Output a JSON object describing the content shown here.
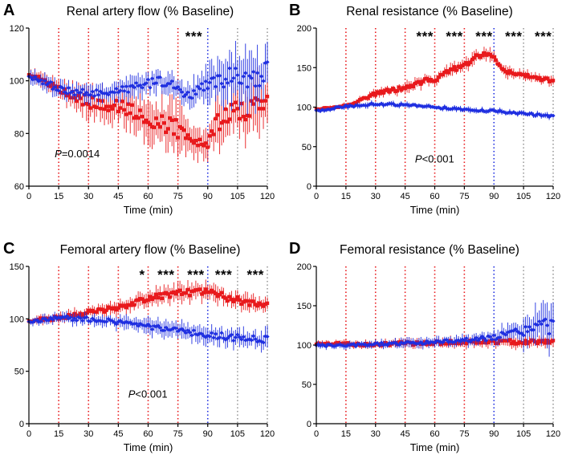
{
  "colors": {
    "red": "#e8191c",
    "blue": "#1f2fe0",
    "grey": "#9a9a9a",
    "axis": "#000000"
  },
  "chart_data": [
    {
      "type": "scatter",
      "panel_letter": "A",
      "title": "Renal artery flow (% Baseline)",
      "xlabel": "Time (min)",
      "ylabel": "",
      "xlim": [
        0,
        120
      ],
      "ylim": [
        60,
        120
      ],
      "xticks": [
        0,
        15,
        30,
        45,
        60,
        75,
        90,
        105,
        120
      ],
      "yticks": [
        60,
        80,
        100,
        120
      ],
      "vlines": [
        {
          "x": 15,
          "color": "red"
        },
        {
          "x": 30,
          "color": "red"
        },
        {
          "x": 45,
          "color": "red"
        },
        {
          "x": 60,
          "color": "red"
        },
        {
          "x": 75,
          "color": "red"
        },
        {
          "x": 90,
          "color": "blue"
        },
        {
          "x": 105,
          "color": "grey"
        },
        {
          "x": 120,
          "color": "grey"
        }
      ],
      "significance": [
        {
          "label": "***",
          "x": 83
        }
      ],
      "p_prefix": "P",
      "p_rest": "=0.0014",
      "p_pos": {
        "x": 13,
        "y": 71
      },
      "series": [
        {
          "color": "red",
          "x": [
            0,
            15,
            30,
            45,
            55,
            60,
            70,
            75,
            80,
            85,
            90,
            95,
            100,
            105,
            110,
            115,
            120
          ],
          "y": [
            103,
            97,
            92,
            90,
            88,
            86,
            83,
            82,
            78,
            76,
            76,
            84,
            88,
            89,
            88,
            90,
            93
          ],
          "err": [
            2,
            3,
            5,
            6,
            6,
            7,
            7,
            8,
            5,
            5,
            5,
            8,
            8,
            9,
            9,
            9,
            8
          ]
        },
        {
          "color": "blue",
          "x": [
            0,
            15,
            30,
            45,
            60,
            70,
            75,
            80,
            85,
            90,
            95,
            100,
            105,
            110,
            115,
            120
          ],
          "y": [
            102,
            97,
            95,
            96,
            99,
            100,
            97,
            95,
            96,
            98,
            100,
            101,
            102,
            101,
            100,
            104
          ],
          "err": [
            2,
            3,
            3,
            3,
            4,
            4,
            4,
            4,
            5,
            6,
            7,
            8,
            8,
            8,
            8,
            8
          ]
        }
      ]
    },
    {
      "type": "scatter",
      "panel_letter": "B",
      "title": "Renal resistance (% Baseline)",
      "xlabel": "Time (min)",
      "ylabel": "",
      "xlim": [
        0,
        120
      ],
      "ylim": [
        0,
        200
      ],
      "xticks": [
        0,
        15,
        30,
        45,
        60,
        75,
        90,
        105,
        120
      ],
      "yticks": [
        0,
        50,
        100,
        150,
        200
      ],
      "vlines": [
        {
          "x": 15,
          "color": "red"
        },
        {
          "x": 30,
          "color": "red"
        },
        {
          "x": 45,
          "color": "red"
        },
        {
          "x": 60,
          "color": "red"
        },
        {
          "x": 75,
          "color": "red"
        },
        {
          "x": 90,
          "color": "blue"
        },
        {
          "x": 105,
          "color": "grey"
        },
        {
          "x": 120,
          "color": "grey"
        }
      ],
      "significance": [
        {
          "label": "***",
          "x": 55
        },
        {
          "label": "***",
          "x": 70
        },
        {
          "label": "***",
          "x": 85
        },
        {
          "label": "***",
          "x": 100
        },
        {
          "label": "***",
          "x": 115
        }
      ],
      "p_prefix": "P",
      "p_rest": "<0.001",
      "p_pos": {
        "x": 50,
        "y": 30
      },
      "series": [
        {
          "color": "red",
          "x": [
            0,
            15,
            25,
            30,
            45,
            55,
            58,
            60,
            65,
            75,
            80,
            85,
            90,
            95,
            100,
            105,
            110,
            115,
            120
          ],
          "y": [
            97,
            102,
            112,
            117,
            125,
            133,
            137,
            132,
            145,
            152,
            163,
            168,
            162,
            147,
            142,
            140,
            138,
            135,
            133
          ],
          "err": [
            2,
            3,
            4,
            5,
            6,
            6,
            6,
            6,
            6,
            6,
            7,
            7,
            7,
            6,
            6,
            5,
            5,
            5,
            5
          ]
        },
        {
          "color": "blue",
          "x": [
            0,
            15,
            30,
            45,
            60,
            75,
            90,
            105,
            120
          ],
          "y": [
            95,
            101,
            104,
            103,
            100,
            97,
            95,
            92,
            88
          ],
          "err": [
            2,
            3,
            3,
            3,
            3,
            3,
            3,
            3,
            3
          ]
        }
      ]
    },
    {
      "type": "scatter",
      "panel_letter": "C",
      "title": "Femoral artery flow (% Baseline)",
      "xlabel": "Time (min)",
      "ylabel": "",
      "xlim": [
        0,
        120
      ],
      "ylim": [
        0,
        150
      ],
      "xticks": [
        0,
        15,
        30,
        45,
        60,
        75,
        90,
        105,
        120
      ],
      "yticks": [
        0,
        50,
        100,
        150
      ],
      "vlines": [
        {
          "x": 15,
          "color": "red"
        },
        {
          "x": 30,
          "color": "red"
        },
        {
          "x": 45,
          "color": "red"
        },
        {
          "x": 60,
          "color": "red"
        },
        {
          "x": 75,
          "color": "red"
        },
        {
          "x": 90,
          "color": "blue"
        },
        {
          "x": 105,
          "color": "grey"
        },
        {
          "x": 120,
          "color": "grey"
        }
      ],
      "significance": [
        {
          "label": "*",
          "x": 57
        },
        {
          "label": "***",
          "x": 69
        },
        {
          "label": "***",
          "x": 84
        },
        {
          "label": "***",
          "x": 98
        },
        {
          "label": "***",
          "x": 114
        }
      ],
      "p_prefix": "P",
      "p_rest": "<0.001",
      "p_pos": {
        "x": 50,
        "y": 25
      },
      "series": [
        {
          "color": "red",
          "x": [
            0,
            15,
            30,
            45,
            55,
            60,
            70,
            80,
            90,
            100,
            110,
            120
          ],
          "y": [
            98,
            101,
            106,
            111,
            116,
            120,
            123,
            125,
            127,
            120,
            116,
            114
          ],
          "err": [
            3,
            4,
            5,
            5,
            6,
            6,
            7,
            7,
            7,
            7,
            7,
            7
          ]
        },
        {
          "color": "blue",
          "x": [
            0,
            15,
            30,
            45,
            60,
            75,
            90,
            105,
            120
          ],
          "y": [
            97,
            101,
            100,
            97,
            93,
            88,
            85,
            82,
            80
          ],
          "err": [
            3,
            4,
            5,
            5,
            6,
            7,
            7,
            8,
            8
          ]
        }
      ]
    },
    {
      "type": "scatter",
      "panel_letter": "D",
      "title": "Femoral resistance (% Baseline)",
      "xlabel": "Time (min)",
      "ylabel": "",
      "xlim": [
        0,
        120
      ],
      "ylim": [
        0,
        200
      ],
      "xticks": [
        0,
        15,
        30,
        45,
        60,
        75,
        90,
        105,
        120
      ],
      "yticks": [
        0,
        50,
        100,
        150,
        200
      ],
      "vlines": [
        {
          "x": 15,
          "color": "red"
        },
        {
          "x": 30,
          "color": "red"
        },
        {
          "x": 45,
          "color": "red"
        },
        {
          "x": 60,
          "color": "red"
        },
        {
          "x": 75,
          "color": "red"
        },
        {
          "x": 90,
          "color": "blue"
        },
        {
          "x": 105,
          "color": "grey"
        },
        {
          "x": 120,
          "color": "grey"
        }
      ],
      "significance": [],
      "p_prefix": "",
      "p_rest": "",
      "p_pos": null,
      "series": [
        {
          "color": "red",
          "x": [
            0,
            15,
            30,
            45,
            60,
            75,
            90,
            105,
            120
          ],
          "y": [
            102,
            101,
            101,
            102,
            103,
            104,
            104,
            104,
            105
          ],
          "err": [
            3,
            4,
            4,
            5,
            5,
            6,
            6,
            6,
            6
          ]
        },
        {
          "color": "blue",
          "x": [
            0,
            15,
            30,
            45,
            60,
            75,
            90,
            100,
            105,
            110,
            115,
            120
          ],
          "y": [
            100,
            99,
            101,
            102,
            104,
            106,
            110,
            115,
            118,
            120,
            125,
            122
          ],
          "err": [
            3,
            4,
            4,
            5,
            5,
            6,
            8,
            12,
            16,
            20,
            24,
            22
          ]
        }
      ]
    }
  ]
}
